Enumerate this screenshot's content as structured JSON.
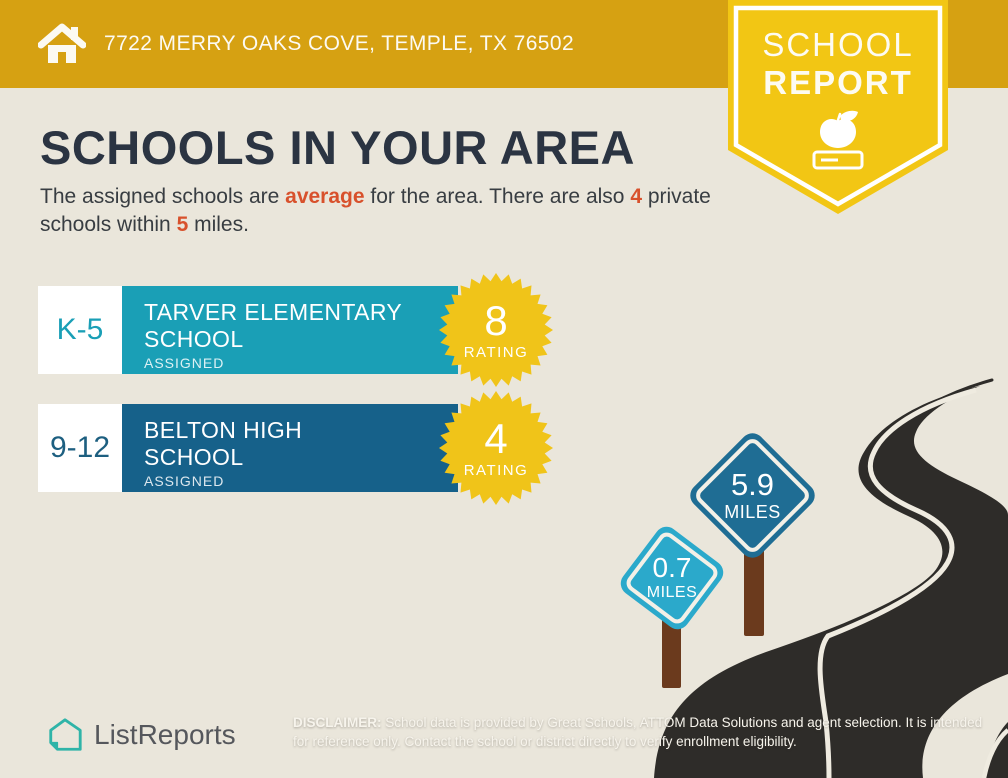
{
  "colors": {
    "header_gold": "#D6A112",
    "badge_yellow": "#F2C614",
    "background_beige": "#EAE6DB",
    "heading_navy": "#2B3442",
    "accent_orange": "#D8512C",
    "teal_bar": "#1A9FB6",
    "dark_blue_bar": "#16618A",
    "star_yellow": "#F0C419",
    "road_dark": "#2E2C29",
    "road_line": "#EFEBE0",
    "sign_light_blue": "#2BA9CB",
    "sign_dark_blue": "#1F6D94",
    "post_brown": "#6B3A1D",
    "logo_teal": "#2FB4A8"
  },
  "header": {
    "address": "7722 MERRY OAKS COVE, TEMPLE, TX 76502"
  },
  "badge": {
    "line1": "SCHOOL",
    "line2": "REPORT"
  },
  "main": {
    "title": "SCHOOLS IN YOUR AREA",
    "subtitle": {
      "p1": "The assigned schools are ",
      "p2": "average",
      "p3": " for the area. There are also ",
      "p4": "4",
      "p5": " private schools within ",
      "p6": "5",
      "p7": " miles."
    }
  },
  "schools": [
    {
      "grades": "K-5",
      "name": "TARVER ELEMENTARY\nSCHOOL",
      "status": "ASSIGNED",
      "rating": "8",
      "rating_label": "RATING"
    },
    {
      "grades": "9-12",
      "name": "BELTON HIGH\nSCHOOL",
      "status": "ASSIGNED",
      "rating": "4",
      "rating_label": "RATING"
    }
  ],
  "signs": [
    {
      "value": "0.7",
      "label": "MILES"
    },
    {
      "value": "5.9",
      "label": "MILES"
    }
  ],
  "footer": {
    "brand": "ListReports",
    "disclaimer_label": "DISCLAIMER:",
    "disclaimer_text": " School data is provided by Great Schools, ATTOM Data Solutions and agent selection. It is intended for reference only. Contact the school or district directly to verify enrollment eligibility."
  }
}
